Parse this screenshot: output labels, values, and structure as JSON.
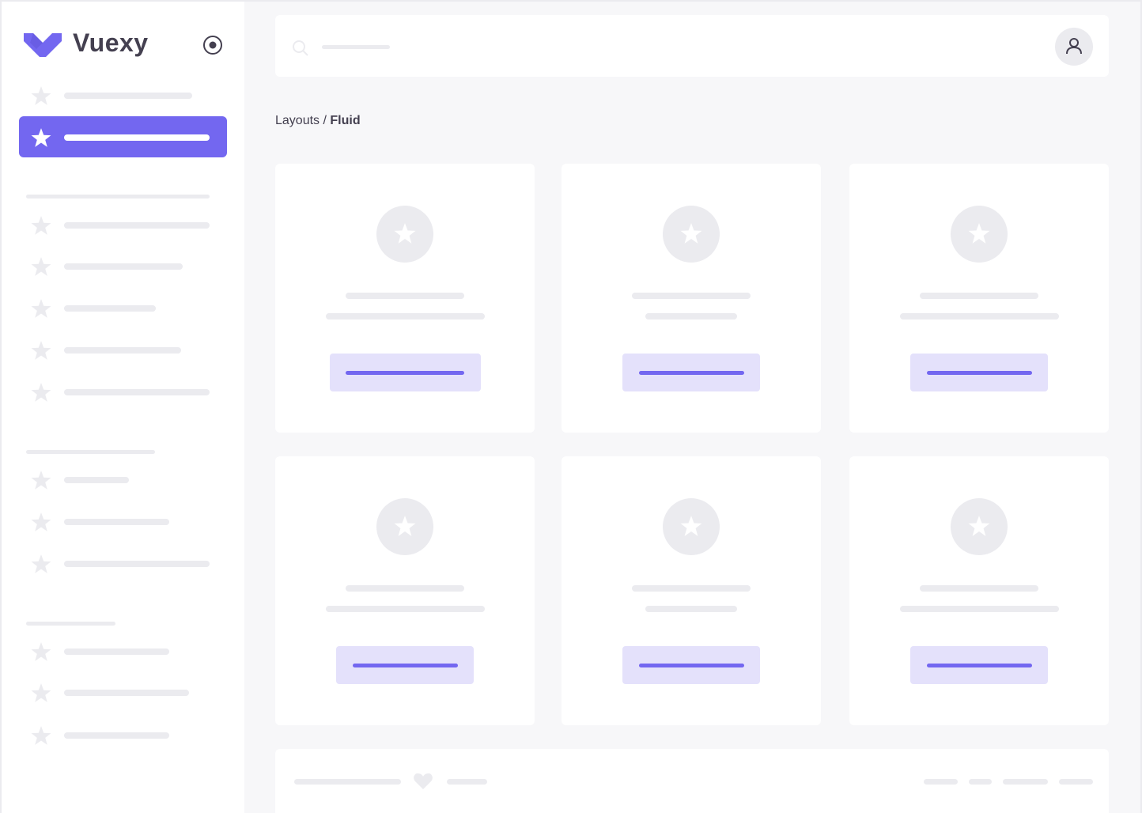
{
  "app": {
    "name": "Vuexy",
    "logo_color": "#7367f0"
  },
  "colors": {
    "accent": "#7367f0",
    "accent_light": "#e4e1fb",
    "skeleton": "#ebebef",
    "background": "#f7f7f9",
    "text": "#444050"
  },
  "sidebar": {
    "toggle_icon": "radio-circle-icon",
    "active_index": 1,
    "item_icon": "star-icon"
  },
  "header": {
    "search_icon": "search-icon",
    "avatar_icon": "user-icon"
  },
  "breadcrumb": {
    "parent": "Layouts",
    "separator": " / ",
    "current": "Fluid"
  },
  "cards": {
    "count": 6,
    "icon": "star-icon"
  },
  "footer": {
    "icon": "heart-icon"
  }
}
